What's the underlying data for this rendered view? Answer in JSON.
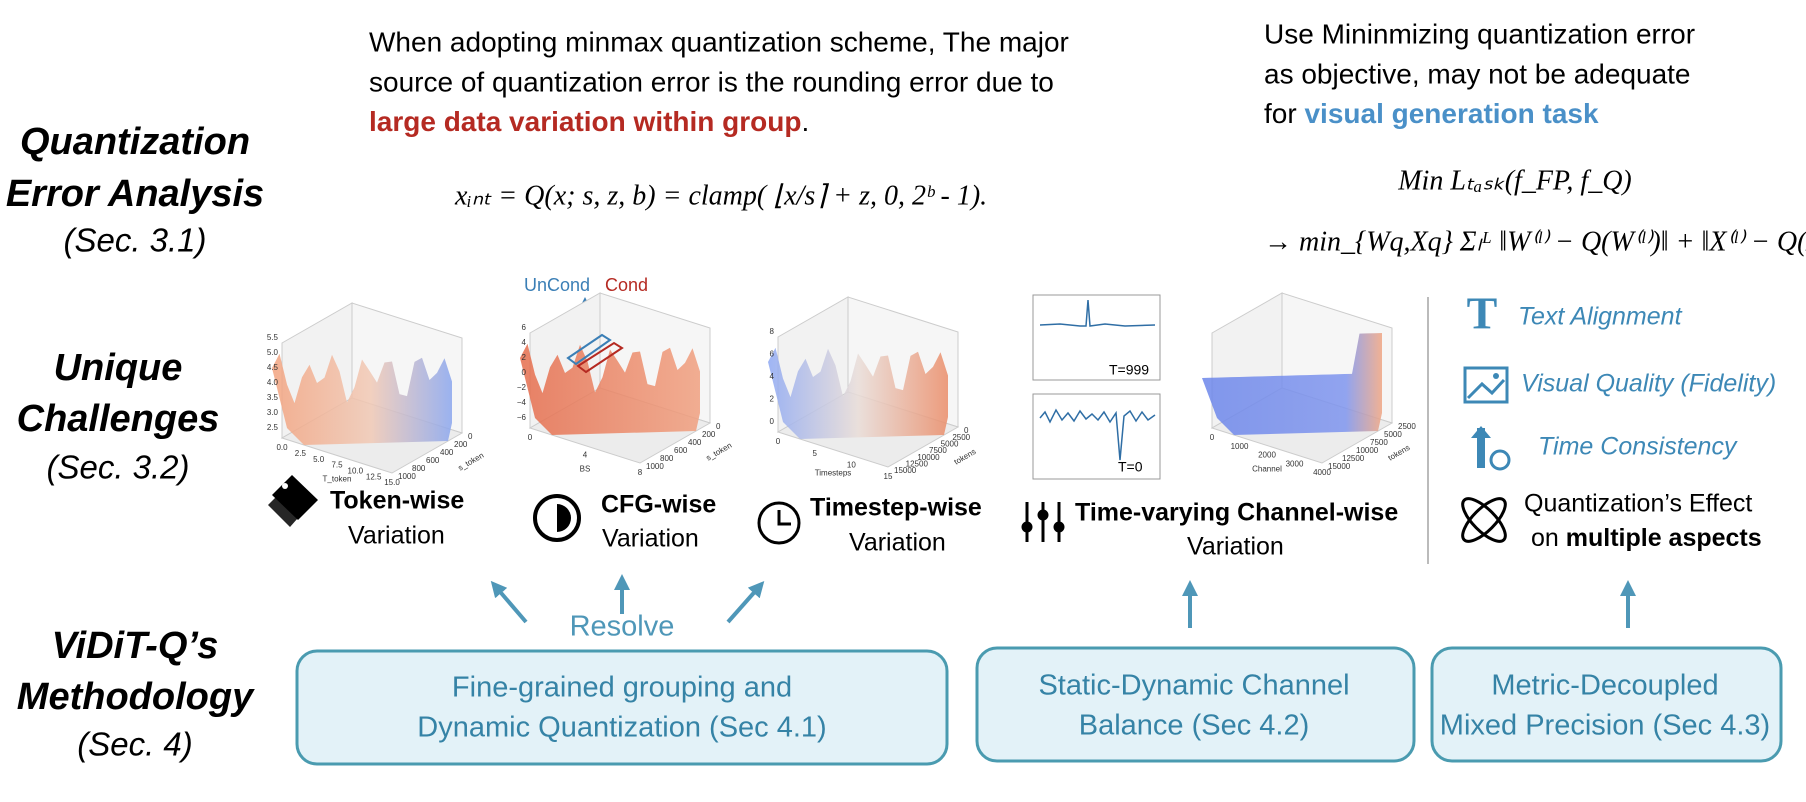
{
  "rows": [
    {
      "title": [
        "Quantization",
        "Error Analysis"
      ],
      "section": "(Sec. 3.1)"
    },
    {
      "title": [
        "Unique",
        "Challenges"
      ],
      "section": "(Sec. 3.2)"
    },
    {
      "title": [
        "ViDiT-Q’s",
        "Methodology"
      ],
      "section": "(Sec. 4)"
    }
  ],
  "analysis": {
    "left_text": [
      "When adopting minmax quantization scheme, The major",
      "source of quantization error is the rounding error due to"
    ],
    "left_highlight": "large data variation within group",
    "left_end": ".",
    "formula": "xᵢₙₜ  =  Q(x; s, z, b)  =  clamp( ⌊x/s⌉ +  z, 0, 2ᵇ - 1).",
    "right_text": [
      "Use Mininmizing quantization error",
      "as objective, may not be adequate"
    ],
    "right_prefix": "for ",
    "right_highlight": "visual generation task",
    "objective": "Min Lₜₐₛₖ(f_FP, f_Q)",
    "objective_expanded": "→  min_{Wq,Xq} Σₗᴸ ‖W⁽ˡ⁾ − Q(W⁽ˡ⁾)‖ + ‖X⁽ˡ⁾ − Q(X⁽ˡ⁾)‖"
  },
  "plots": [
    {
      "zticks": [
        "5.5",
        "5.0",
        "4.5",
        "4.0",
        "3.5",
        "3.0",
        "2.5"
      ],
      "xticks": [
        "0.0",
        "2.5",
        "5.0",
        "7.5",
        "10.0",
        "12.5",
        "15.0"
      ],
      "yticks": [
        "1000",
        "800",
        "600",
        "400",
        "200",
        "0"
      ],
      "xlabel": "T_token",
      "ylabel": "s_token"
    },
    {
      "zticks": [
        "6",
        "4",
        "2",
        "0",
        "−2",
        "−4",
        "−6"
      ],
      "xticks": [
        "0",
        "4",
        "8"
      ],
      "yticks": [
        "1000",
        "800",
        "600",
        "400",
        "200",
        "0"
      ],
      "xlabel": "BS",
      "ylabel": "s_token"
    },
    {
      "zticks": [
        "8",
        "6",
        "4",
        "2",
        "0"
      ],
      "xticks": [
        "0",
        "5",
        "10",
        "15"
      ],
      "yticks": [
        "15000",
        "12500",
        "10000",
        "7500",
        "5000",
        "2500",
        "0"
      ],
      "xlabel": "Timesteps",
      "ylabel": "tokens"
    },
    {
      "zticks": [],
      "xticks": [
        "0",
        "1000",
        "2000",
        "3000",
        "4000"
      ],
      "yticks": [
        "15000",
        "12500",
        "10000",
        "7500",
        "5000",
        "2500"
      ],
      "xlabel": "Channel",
      "ylabel": "tokens"
    }
  ],
  "cfg_legend": {
    "uncond": "UnCond",
    "cond": "Cond"
  },
  "timestep_insets": [
    "T=999",
    "T=0"
  ],
  "challenges": [
    {
      "name": "Token-wise",
      "sub": "Variation"
    },
    {
      "name": "CFG-wise",
      "sub": "Variation"
    },
    {
      "name": "Timestep-wise",
      "sub": "Variation"
    },
    {
      "name": "Time-varying Channel-wise",
      "sub": "Variation"
    }
  ],
  "aspects": [
    "Text Alignment",
    "Visual Quality (Fidelity)",
    "Time Consistency"
  ],
  "effect": {
    "line1": "Quantization’s Effect",
    "prefix": "on ",
    "bold": "multiple aspects"
  },
  "resolve": "Resolve",
  "methods": [
    [
      "Fine-grained grouping and",
      "Dynamic Quantization (Sec 4.1)"
    ],
    [
      "Static-Dynamic Channel",
      "Balance (Sec 4.2)"
    ],
    [
      "Metric-Decoupled",
      "Mixed Precision (Sec 4.3)"
    ]
  ]
}
